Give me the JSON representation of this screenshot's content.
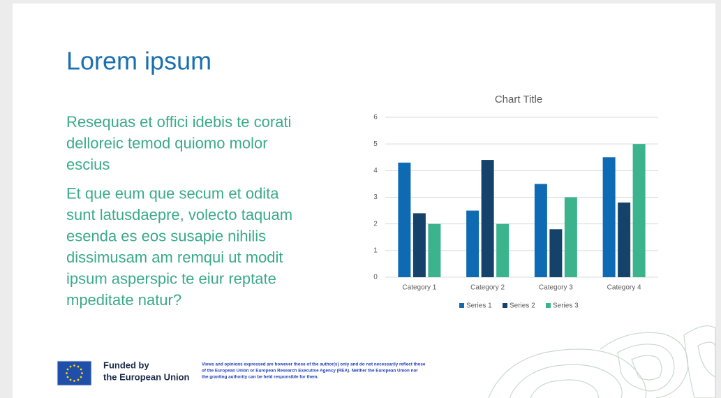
{
  "slide": {
    "title": "Lorem ipsum",
    "paragraphs": [
      [
        "Resequas et offici idebis te corati",
        "delloreic temod quiomo molor",
        "escius"
      ],
      [
        "Et que eum que secum et odita",
        "sunt latusdaepre, volecto taquam",
        "esenda es eos susapie nihilis",
        "dissimusam am remqui ut modit",
        "ipsum asperspic te eiur reptate",
        "mpeditate natur?"
      ]
    ]
  },
  "footer": {
    "funded": [
      "Funded by",
      "the European Union"
    ],
    "disclaimer": [
      "Views and opinions expressed are however those of the author(s) only and do not necessarily reflect those",
      "of the European Union or European Research Executive Agency (REA). Neither the European Union nor",
      "the granting authority can be held responsible for them."
    ]
  },
  "chart_data": {
    "type": "bar",
    "title": "Chart Title",
    "categories": [
      "Category 1",
      "Category 2",
      "Category 3",
      "Category 4"
    ],
    "series": [
      {
        "name": "Series 1",
        "color": "#0f6ab4",
        "values": [
          4.3,
          2.5,
          3.5,
          4.5
        ]
      },
      {
        "name": "Series 2",
        "color": "#15426a",
        "values": [
          2.4,
          4.4,
          1.8,
          2.8
        ]
      },
      {
        "name": "Series 3",
        "color": "#3bb48e",
        "values": [
          2,
          2,
          3,
          5
        ]
      }
    ],
    "ylim": [
      0,
      6
    ],
    "yticks": [
      0,
      1,
      2,
      3,
      4,
      5,
      6
    ],
    "grid": true,
    "legend": "bottom"
  }
}
